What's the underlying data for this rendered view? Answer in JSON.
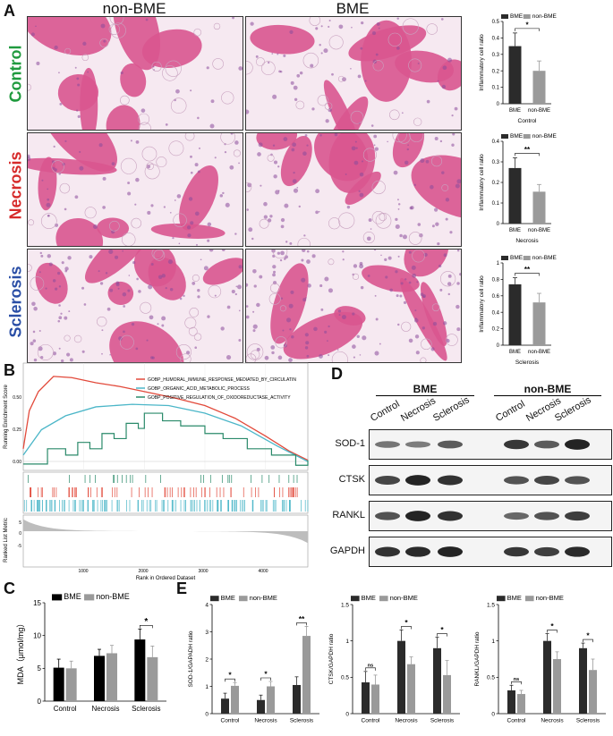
{
  "panel_a": {
    "letter": "A",
    "col_headers": [
      "non-BME",
      "BME"
    ],
    "rows": [
      {
        "label": "Control",
        "color": "#1f9a3e"
      },
      {
        "label": "Necrosis",
        "color": "#d62a2a"
      },
      {
        "label": "Sclerosis",
        "color": "#2a4ea6"
      }
    ]
  },
  "panel_b": {
    "letter": "B",
    "ylabel_top": "Running Enrichment Score",
    "ylabel_bottom": "Ranked List Metric",
    "xlabel": "Rank in Ordered Dataset",
    "legend": [
      {
        "name": "GOBP_HUMORAL_IMMUNE_RESPONSE_MEDIATED_BY_CIRCULATIN",
        "color": "#e2493a"
      },
      {
        "name": "GOBP_ORGANIC_ACID_METABOLIC_PROCESS",
        "color": "#4bb6c8"
      },
      {
        "name": "GOBP_POSITIVE_REGULATION_OF_OXIDOREDUCTASE_ACTIVITY",
        "color": "#2a8a6a"
      }
    ],
    "yticks_top": [
      "0.50",
      "0.25",
      "0.00"
    ],
    "yticks_bottom": [
      "5",
      "0",
      "-5"
    ],
    "xticks": [
      "1000",
      "2000",
      "3000",
      "4000"
    ]
  },
  "panel_c": {
    "letter": "C",
    "legend": [
      "BME",
      "non-BME"
    ],
    "ylabel": "MDA（μmol/mg）",
    "sig": "*"
  },
  "panel_d": {
    "letter": "D",
    "groups": [
      "BME",
      "non-BME"
    ],
    "lanes": [
      "Control",
      "Necrosis",
      "Sclerosis",
      "Control",
      "Necrosis",
      "Sclerosis"
    ],
    "proteins": [
      "SOD-1",
      "CTSK",
      "RANKL",
      "GAPDH"
    ]
  },
  "panel_e": {
    "letter": "E",
    "legend": [
      "BME",
      "non-BME"
    ]
  },
  "chart_data": [
    {
      "id": "a-control",
      "type": "bar",
      "categories": [
        "BME",
        "non-BME"
      ],
      "values": [
        0.35,
        0.2
      ],
      "errors": [
        0.08,
        0.06
      ],
      "ylabel": "Inflammatory cell ratio",
      "xlabel": "Control",
      "yticks": [
        0,
        0.1,
        0.2,
        0.3,
        0.4,
        0.5
      ],
      "ylim": [
        0,
        0.5
      ],
      "legend": [
        "BME",
        "non-BME"
      ],
      "sig": "*"
    },
    {
      "id": "a-necrosis",
      "type": "bar",
      "categories": [
        "BME",
        "non-BME"
      ],
      "values": [
        0.27,
        0.155
      ],
      "errors": [
        0.05,
        0.035
      ],
      "ylabel": "Inflammatory cell ratio",
      "xlabel": "Necrosis",
      "yticks": [
        0,
        0.1,
        0.2,
        0.3,
        0.4
      ],
      "ylim": [
        0,
        0.4
      ],
      "legend": [
        "BME",
        "non-BME"
      ],
      "sig": "**"
    },
    {
      "id": "a-sclerosis",
      "type": "bar",
      "categories": [
        "BME",
        "non-BME"
      ],
      "values": [
        0.74,
        0.52
      ],
      "errors": [
        0.08,
        0.11
      ],
      "ylabel": "Inflammatory cell ratio",
      "xlabel": "Sclerosis",
      "yticks": [
        0,
        0.2,
        0.4,
        0.6,
        0.8,
        1.0
      ],
      "ylim": [
        0,
        1.0
      ],
      "legend": [
        "BME",
        "non-BME"
      ],
      "sig": "**"
    },
    {
      "id": "c-mda",
      "type": "bar",
      "categories": [
        "Control",
        "Necrosis",
        "Sclerosis"
      ],
      "series": [
        {
          "name": "BME",
          "values": [
            5.1,
            6.9,
            9.4
          ],
          "errors": [
            1.3,
            1.0,
            1.6
          ]
        },
        {
          "name": "non-BME",
          "values": [
            5.0,
            7.3,
            6.7
          ],
          "errors": [
            1.1,
            1.2,
            1.7
          ]
        }
      ],
      "ylabel": "MDA（μmol/mg）",
      "yticks": [
        0,
        5,
        10,
        15
      ],
      "ylim": [
        0,
        15
      ],
      "sig": [
        null,
        null,
        "*"
      ]
    },
    {
      "id": "e-sod1",
      "type": "bar",
      "categories": [
        "Control",
        "Necrosis",
        "Sclerosis"
      ],
      "series": [
        {
          "name": "BME",
          "values": [
            0.55,
            0.5,
            1.05
          ],
          "errors": [
            0.2,
            0.18,
            0.3
          ]
        },
        {
          "name": "non-BME",
          "values": [
            1.02,
            1.0,
            2.85
          ],
          "errors": [
            0.12,
            0.18,
            0.35
          ]
        }
      ],
      "ylabel": "SOD-1/GAPADH ratio",
      "yticks": [
        0,
        1,
        2,
        3,
        4
      ],
      "ylim": [
        0,
        4
      ],
      "sig": [
        "*",
        "*",
        "**"
      ]
    },
    {
      "id": "e-ctsk",
      "type": "bar",
      "categories": [
        "Control",
        "Necrosis",
        "Sclerosis"
      ],
      "series": [
        {
          "name": "BME",
          "values": [
            0.43,
            1.0,
            0.9
          ],
          "errors": [
            0.15,
            0.15,
            0.15
          ]
        },
        {
          "name": "non-BME",
          "values": [
            0.4,
            0.68,
            0.53
          ],
          "errors": [
            0.13,
            0.1,
            0.2
          ]
        }
      ],
      "ylabel": "CTSK/GAPDH ratio",
      "yticks": [
        0,
        0.5,
        1.0,
        1.5
      ],
      "ylim": [
        0,
        1.5
      ],
      "sig": [
        "ns",
        "*",
        "*"
      ]
    },
    {
      "id": "e-rankl",
      "type": "bar",
      "categories": [
        "Control",
        "Necrosis",
        "Sclerosis"
      ],
      "series": [
        {
          "name": "BME",
          "values": [
            0.32,
            1.0,
            0.9
          ],
          "errors": [
            0.07,
            0.1,
            0.07
          ]
        },
        {
          "name": "non-BME",
          "values": [
            0.27,
            0.75,
            0.6
          ],
          "errors": [
            0.05,
            0.1,
            0.15
          ]
        }
      ],
      "ylabel": "RANKL/GAPDH ratio",
      "yticks": [
        0,
        0.5,
        1.0,
        1.5
      ],
      "ylim": [
        0,
        1.5
      ],
      "sig": [
        "ns",
        "*",
        "*"
      ]
    }
  ]
}
